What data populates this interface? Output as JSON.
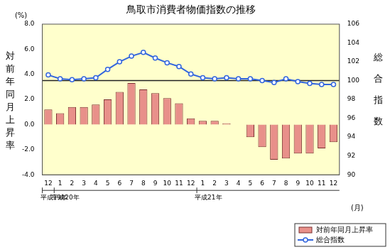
{
  "chart_data": {
    "type": "bar",
    "title": "鳥取市消費者物価指数の推移",
    "categories": [
      "12",
      "1",
      "2",
      "3",
      "4",
      "5",
      "6",
      "7",
      "8",
      "9",
      "10",
      "11",
      "12",
      "1",
      "2",
      "3",
      "4",
      "5",
      "6",
      "7",
      "8",
      "9",
      "10",
      "11",
      "12"
    ],
    "year_groups": [
      {
        "label": "平成19年",
        "start": 0
      },
      {
        "label": "平成20年",
        "start": 1
      },
      {
        "label": "平成21年",
        "start": 13
      }
    ],
    "x_unit_label": "(月)",
    "y_unit_label": "(%)",
    "y_label": "対前年同月上昇率",
    "y2_label": "総合指数",
    "series": [
      {
        "name": "対前年同月上昇率",
        "type": "bar",
        "color": "#e8908a",
        "axis": "y",
        "values": [
          1.2,
          0.9,
          1.4,
          1.4,
          1.6,
          2.0,
          2.6,
          3.3,
          2.8,
          2.5,
          2.1,
          1.7,
          0.5,
          0.3,
          0.3,
          0.1,
          0.0,
          -1.0,
          -1.8,
          -2.8,
          -2.7,
          -2.3,
          -2.3,
          -1.9,
          -1.4
        ]
      },
      {
        "name": "総合指数",
        "type": "line",
        "color": "#3366dd",
        "axis": "y2",
        "marker": "circle",
        "values": [
          100.6,
          100.2,
          100.1,
          100.2,
          100.3,
          101.2,
          102.0,
          102.6,
          103.0,
          102.4,
          101.9,
          101.5,
          100.7,
          100.3,
          100.2,
          100.3,
          100.2,
          100.2,
          100.0,
          99.8,
          100.2,
          99.9,
          99.7,
          99.6,
          99.6
        ]
      }
    ],
    "ylim": [
      -4,
      8
    ],
    "yticks": [
      {
        "value": -4,
        "label": "-4.0"
      },
      {
        "value": -2,
        "label": "-2.0"
      },
      {
        "value": 0,
        "label": "0.0"
      },
      {
        "value": 2,
        "label": "2.0"
      },
      {
        "value": 4,
        "label": "4.0"
      },
      {
        "value": 6,
        "label": "6.0"
      },
      {
        "value": 8,
        "label": "8.0"
      }
    ],
    "y2lim": [
      90,
      106
    ],
    "y2ticks": [
      90,
      92,
      94,
      96,
      98,
      100,
      102,
      104,
      106
    ],
    "reference_lines": [
      {
        "axis": "y2",
        "value": 100
      }
    ],
    "grid": false,
    "legend": "bottom-right"
  }
}
